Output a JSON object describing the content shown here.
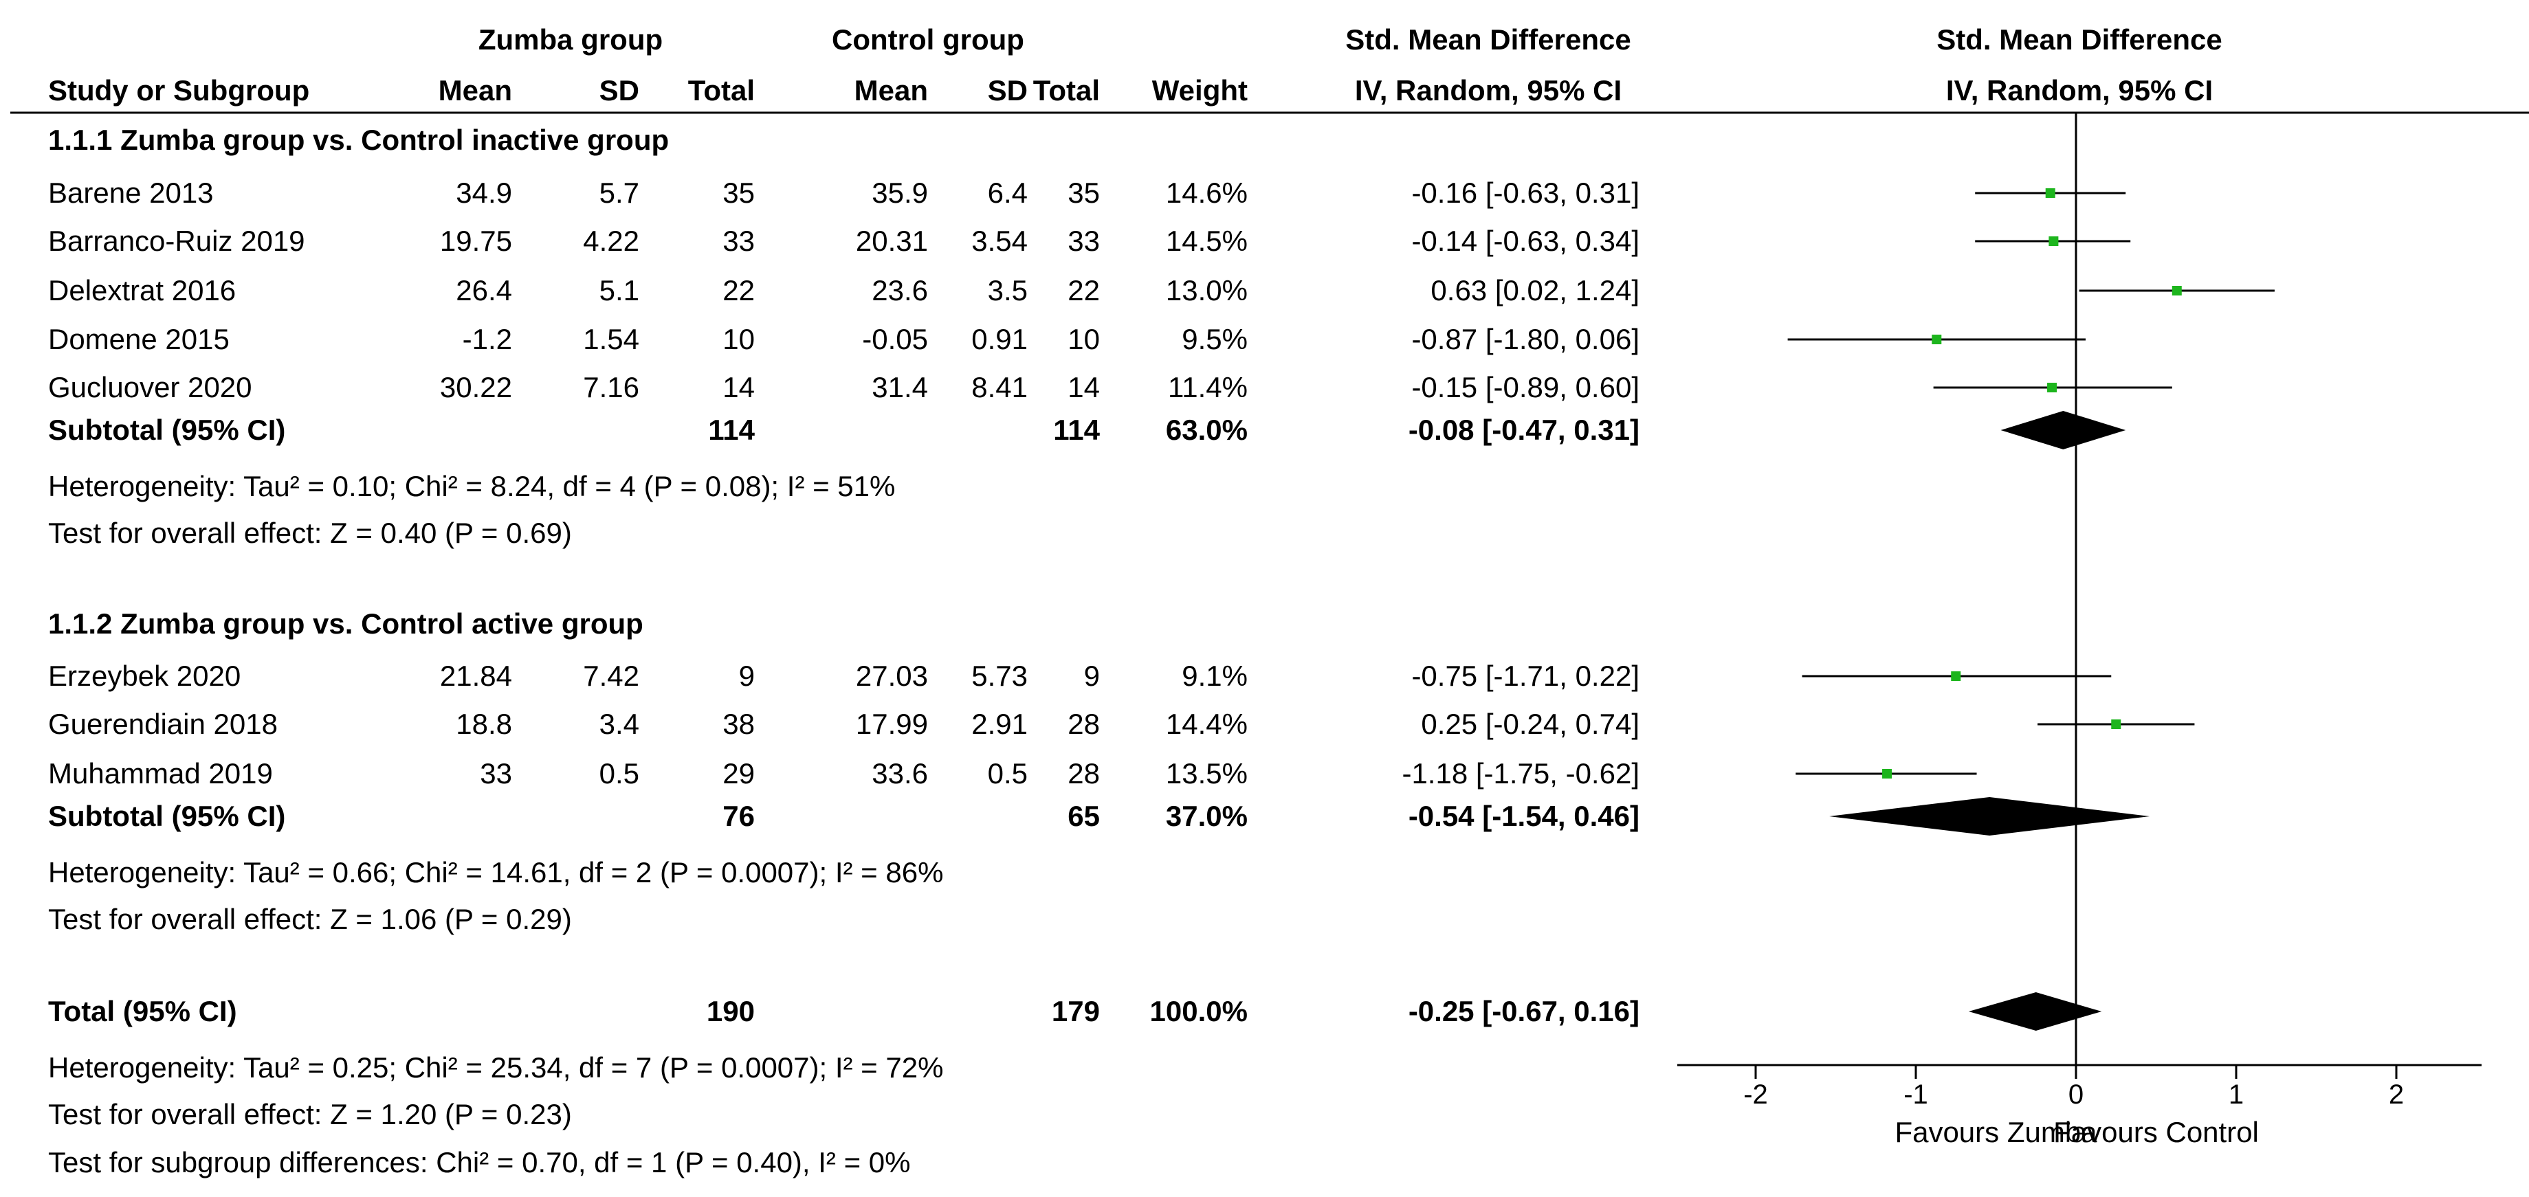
{
  "header": {
    "group1": "Zumba group",
    "group2": "Control group",
    "effect_header": "Std. Mean Difference",
    "effect_subheader": "IV, Random, 95% CI",
    "plot_header": "Std. Mean Difference",
    "plot_subheader": "IV, Random, 95% CI",
    "columns": [
      "Study or Subgroup",
      "Mean",
      "SD",
      "Total",
      "Mean",
      "SD",
      "Total",
      "Weight"
    ]
  },
  "subgroups": [
    {
      "title": "1.1.1 Zumba group vs. Control inactive group",
      "studies": [
        {
          "name": "Barene 2013",
          "m1": "34.9",
          "sd1": "5.7",
          "n1": "35",
          "m2": "35.9",
          "sd2": "6.4",
          "n2": "35",
          "weight": "14.6%",
          "ci_text": "-0.16 [-0.63, 0.31]",
          "est": -0.16,
          "lo": -0.63,
          "hi": 0.31
        },
        {
          "name": "Barranco-Ruiz 2019",
          "m1": "19.75",
          "sd1": "4.22",
          "n1": "33",
          "m2": "20.31",
          "sd2": "3.54",
          "n2": "33",
          "weight": "14.5%",
          "ci_text": "-0.14 [-0.63, 0.34]",
          "est": -0.14,
          "lo": -0.63,
          "hi": 0.34
        },
        {
          "name": "Delextrat 2016",
          "m1": "26.4",
          "sd1": "5.1",
          "n1": "22",
          "m2": "23.6",
          "sd2": "3.5",
          "n2": "22",
          "weight": "13.0%",
          "ci_text": "0.63 [0.02, 1.24]",
          "est": 0.63,
          "lo": 0.02,
          "hi": 1.24
        },
        {
          "name": "Domene 2015",
          "m1": "-1.2",
          "sd1": "1.54",
          "n1": "10",
          "m2": "-0.05",
          "sd2": "0.91",
          "n2": "10",
          "weight": "9.5%",
          "ci_text": "-0.87 [-1.80, 0.06]",
          "est": -0.87,
          "lo": -1.8,
          "hi": 0.06
        },
        {
          "name": "Gucluover 2020",
          "m1": "30.22",
          "sd1": "7.16",
          "n1": "14",
          "m2": "31.4",
          "sd2": "8.41",
          "n2": "14",
          "weight": "11.4%",
          "ci_text": "-0.15 [-0.89, 0.60]",
          "est": -0.15,
          "lo": -0.89,
          "hi": 0.6
        }
      ],
      "subtotal": {
        "label": "Subtotal (95% CI)",
        "n1": "114",
        "n2": "114",
        "weight": "63.0%",
        "ci_text": "-0.08 [-0.47, 0.31]",
        "est": -0.08,
        "lo": -0.47,
        "hi": 0.31
      },
      "heterogeneity": "Heterogeneity: Tau² = 0.10; Chi² = 8.24, df = 4 (P = 0.08); I² = 51%",
      "overall": "Test for overall effect: Z = 0.40 (P = 0.69)"
    },
    {
      "title": "1.1.2 Zumba group vs. Control active group",
      "studies": [
        {
          "name": "Erzeybek 2020",
          "m1": "21.84",
          "sd1": "7.42",
          "n1": "9",
          "m2": "27.03",
          "sd2": "5.73",
          "n2": "9",
          "weight": "9.1%",
          "ci_text": "-0.75 [-1.71, 0.22]",
          "est": -0.75,
          "lo": -1.71,
          "hi": 0.22
        },
        {
          "name": "Guerendiain 2018",
          "m1": "18.8",
          "sd1": "3.4",
          "n1": "38",
          "m2": "17.99",
          "sd2": "2.91",
          "n2": "28",
          "weight": "14.4%",
          "ci_text": "0.25 [-0.24, 0.74]",
          "est": 0.25,
          "lo": -0.24,
          "hi": 0.74
        },
        {
          "name": "Muhammad 2019",
          "m1": "33",
          "sd1": "0.5",
          "n1": "29",
          "m2": "33.6",
          "sd2": "0.5",
          "n2": "28",
          "weight": "13.5%",
          "ci_text": "-1.18 [-1.75, -0.62]",
          "est": -1.18,
          "lo": -1.75,
          "hi": -0.62
        }
      ],
      "subtotal": {
        "label": "Subtotal (95% CI)",
        "n1": "76",
        "n2": "65",
        "weight": "37.0%",
        "ci_text": "-0.54 [-1.54, 0.46]",
        "est": -0.54,
        "lo": -1.54,
        "hi": 0.46
      },
      "heterogeneity": "Heterogeneity: Tau² = 0.66; Chi² = 14.61, df = 2 (P = 0.0007); I² = 86%",
      "overall": "Test for overall effect: Z = 1.06 (P = 0.29)"
    }
  ],
  "total": {
    "label": "Total (95% CI)",
    "n1": "190",
    "n2": "179",
    "weight": "100.0%",
    "ci_text": "-0.25 [-0.67, 0.16]",
    "est": -0.25,
    "lo": -0.67,
    "hi": 0.16
  },
  "footer": [
    "Heterogeneity: Tau² = 0.25; Chi² = 25.34, df = 7 (P = 0.0007); I² = 72%",
    "Test for overall effect: Z = 1.20 (P = 0.23)",
    "Test for subgroup differences: Chi² = 0.70, df = 1 (P = 0.40), I² = 0%"
  ],
  "axis": {
    "ticks": [
      -2,
      -1,
      0,
      1,
      2
    ],
    "tick_labels": [
      "-2",
      "-1",
      "0",
      "1",
      "2"
    ],
    "left_label": "Favours Zumba",
    "right_label": "Favours Control"
  },
  "colors": {
    "square": "#1db51d",
    "diamond": "#000000",
    "text": "#000000"
  },
  "chart_data": {
    "type": "forest",
    "title": "Std. Mean Difference, IV, Random, 95% CI",
    "xlabel_left": "Favours Zumba",
    "xlabel_right": "Favours Control",
    "xlim": [
      -2.5,
      2.5
    ],
    "xticks": [
      -2,
      -1,
      0,
      1,
      2
    ],
    "series": [
      {
        "name": "Barene 2013",
        "values": [
          -0.16,
          -0.63,
          0.31
        ]
      },
      {
        "name": "Barranco-Ruiz 2019",
        "values": [
          -0.14,
          -0.63,
          0.34
        ]
      },
      {
        "name": "Delextrat 2016",
        "values": [
          0.63,
          0.02,
          1.24
        ]
      },
      {
        "name": "Domene 2015",
        "values": [
          -0.87,
          -1.8,
          0.06
        ]
      },
      {
        "name": "Gucluover 2020",
        "values": [
          -0.15,
          -0.89,
          0.6
        ]
      },
      {
        "name": "Subtotal 1.1.1",
        "values": [
          -0.08,
          -0.47,
          0.31
        ]
      },
      {
        "name": "Erzeybek 2020",
        "values": [
          -0.75,
          -1.71,
          0.22
        ]
      },
      {
        "name": "Guerendiain 2018",
        "values": [
          0.25,
          -0.24,
          0.74
        ]
      },
      {
        "name": "Muhammad 2019",
        "values": [
          -1.18,
          -1.75,
          -0.62
        ]
      },
      {
        "name": "Subtotal 1.1.2",
        "values": [
          -0.54,
          -1.54,
          0.46
        ]
      },
      {
        "name": "Total",
        "values": [
          -0.25,
          -0.67,
          0.16
        ]
      }
    ]
  }
}
